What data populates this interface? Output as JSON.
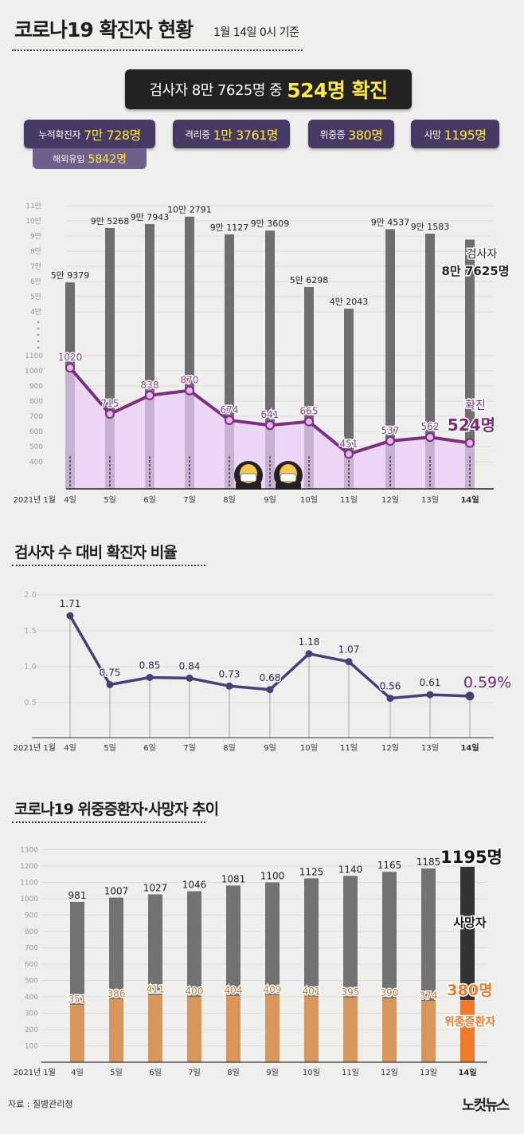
{
  "header": {
    "title": "코로나19 확진자 현황",
    "subtitle": "1월 14일 0시 기준"
  },
  "summary": {
    "main_prefix": "검사자 8만 7625명 중",
    "main_highlight": "524명 확진",
    "boxes": [
      {
        "label": "누적확진자",
        "value": "7만 728명"
      },
      {
        "label": "격리중",
        "value": "1만 3761명"
      },
      {
        "label": "위중증",
        "value": "380명"
      },
      {
        "label": "사망",
        "value": "1195명"
      }
    ],
    "sub_box": {
      "label": "해외유입",
      "value": "5842명"
    }
  },
  "section2_title": "검사자 수 대비 확진자 비율",
  "section3_title": "코로나19 위중증환자·사망자 추이",
  "source": "자료 : 질병관리청",
  "logo": "노컷뉴스",
  "colors": {
    "tests_bar": "#6f6f6f",
    "confirmed_line": "#7b2f7e",
    "confirmed_fill": "#ecd6f5",
    "ratio_line": "#4a3d78",
    "death_bar": "#727272",
    "critical_bar": "#d9965a",
    "latest_critical": "#f07a2a",
    "latest_death": "#333333"
  },
  "chart_data": [
    {
      "type": "bar+line",
      "title": "코로나19 확진자 현황",
      "x_prefix": "2021년 1월",
      "categories": [
        "4일",
        "5일",
        "6일",
        "7일",
        "8일",
        "9일",
        "10일",
        "11일",
        "12일",
        "13일",
        "14일"
      ],
      "series": [
        {
          "name": "검사자",
          "values": [
            59379,
            95268,
            97943,
            102791,
            91127,
            93609,
            56298,
            42043,
            94537,
            91583,
            87625
          ],
          "labels": [
            "5만 9379",
            "9만 5268",
            "9만 7943",
            "10만 2791",
            "9만 1127",
            "9만 3609",
            "5만 6298",
            "4만 2043",
            "9만 4537",
            "9만 1583",
            ""
          ]
        },
        {
          "name": "확진",
          "values": [
            1020,
            715,
            838,
            870,
            674,
            641,
            665,
            451,
            537,
            562,
            524
          ],
          "labels": [
            "1020",
            "715",
            "838",
            "870",
            "674",
            "641",
            "665",
            "451",
            "537",
            "562",
            ""
          ]
        }
      ],
      "y_ticks_upper": [
        "11만",
        "10만",
        "9만",
        "8만",
        "7만",
        "6만",
        "5만",
        "4만"
      ],
      "y_ticks_lower": [
        "1100",
        "1000",
        "900",
        "800",
        "700",
        "600",
        "500",
        "400"
      ],
      "latest_tests_label": "검사자",
      "latest_tests_value": "8만 7625명",
      "latest_confirmed_label": "확진",
      "latest_confirmed_value": "524명"
    },
    {
      "type": "line",
      "title": "검사자 수 대비 확진자 비율",
      "x_prefix": "2021년 1월",
      "categories": [
        "4일",
        "5일",
        "6일",
        "7일",
        "8일",
        "9일",
        "10일",
        "11일",
        "12일",
        "13일",
        "14일"
      ],
      "values": [
        1.71,
        0.75,
        0.85,
        0.84,
        0.73,
        0.68,
        1.18,
        1.07,
        0.56,
        0.61,
        0.59
      ],
      "labels": [
        "1.71",
        "0.75",
        "0.85",
        "0.84",
        "0.73",
        "0.68",
        "1.18",
        "1.07",
        "0.56",
        "0.61",
        "0.59%"
      ],
      "y_ticks": [
        "2.0",
        "1.5",
        "1.0",
        "0.5"
      ],
      "ylim": [
        0,
        2.0
      ]
    },
    {
      "type": "bar",
      "title": "코로나19 위중증환자·사망자 추이",
      "x_prefix": "2021년 1월",
      "categories": [
        "4일",
        "5일",
        "6일",
        "7일",
        "8일",
        "9일",
        "10일",
        "11일",
        "12일",
        "13일",
        "14일"
      ],
      "series": [
        {
          "name": "사망자",
          "values": [
            981,
            1007,
            1027,
            1046,
            1081,
            1100,
            1125,
            1140,
            1165,
            1185,
            1195
          ],
          "labels": [
            "981",
            "1007",
            "1027",
            "1046",
            "1081",
            "1100",
            "1125",
            "1140",
            "1165",
            "1185",
            "1195명"
          ]
        },
        {
          "name": "위중증환자",
          "values": [
            351,
            386,
            411,
            400,
            404,
            409,
            401,
            395,
            390,
            374,
            380
          ],
          "labels": [
            "351",
            "386",
            "411",
            "400",
            "404",
            "409",
            "401",
            "395",
            "390",
            "374",
            "380명"
          ]
        }
      ],
      "y_ticks": [
        "1300",
        "1200",
        "1100",
        "1000",
        "900",
        "800",
        "700",
        "600",
        "500",
        "400",
        "300",
        "200",
        "100"
      ],
      "ylim": [
        0,
        1300
      ],
      "latest_death_label": "사망자",
      "latest_critical_label": "위중증환자"
    }
  ]
}
